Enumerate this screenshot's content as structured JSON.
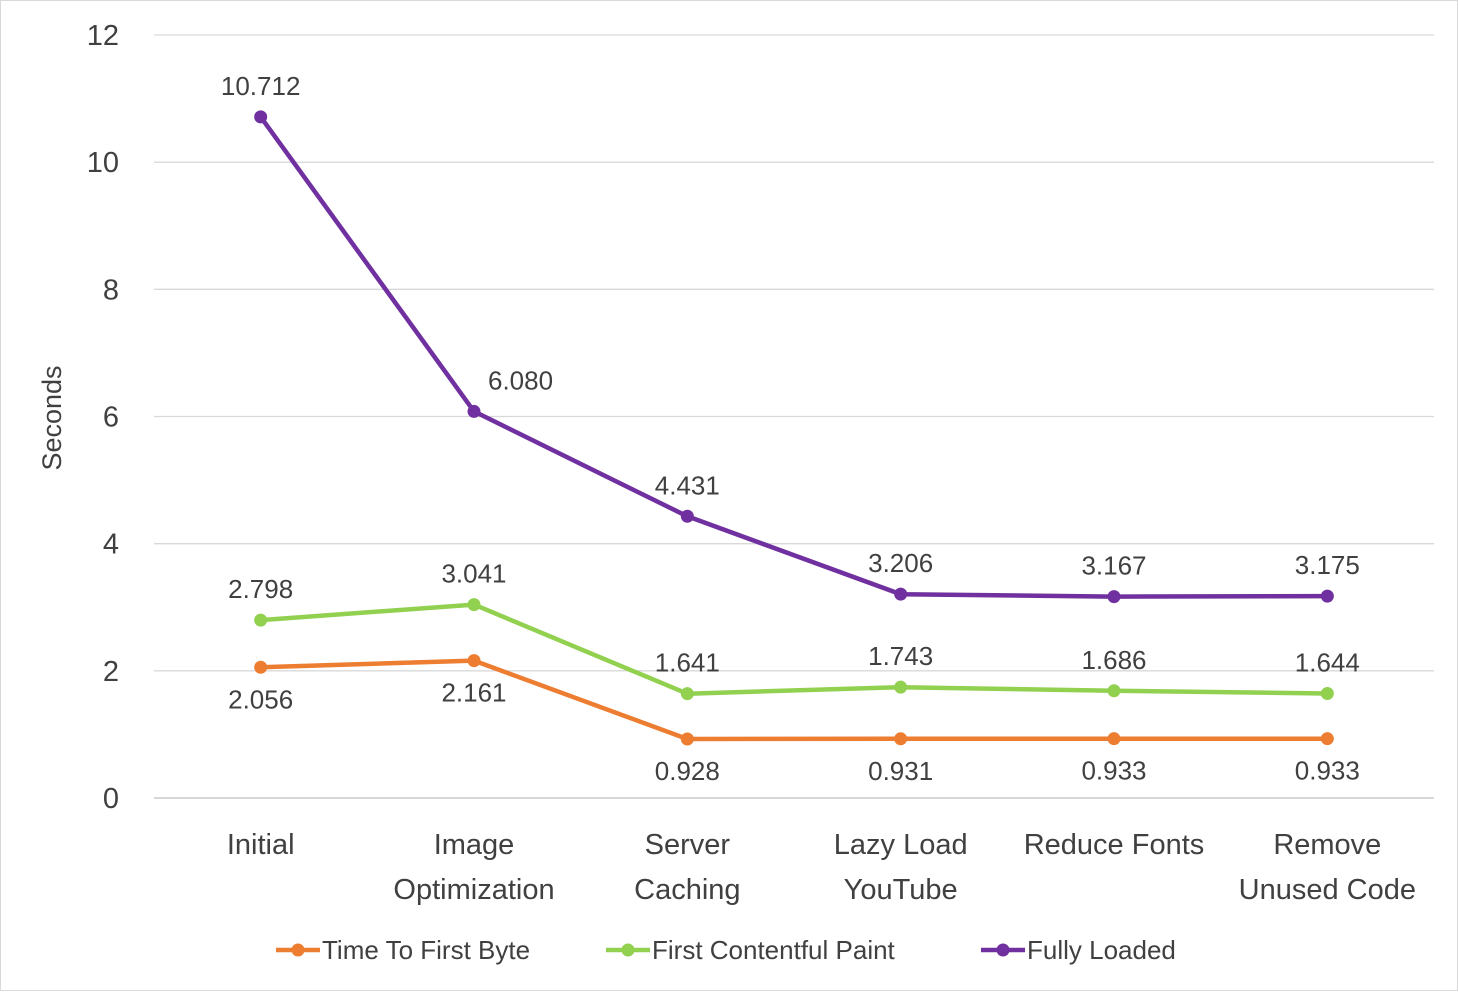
{
  "chart_data": {
    "type": "line",
    "ylabel": "Seconds",
    "ylim": [
      0,
      12
    ],
    "yticks": [
      0,
      2,
      4,
      6,
      8,
      10,
      12
    ],
    "grid": true,
    "legend_position": "bottom",
    "categories": [
      [
        "Initial"
      ],
      [
        "Image",
        "Optimization"
      ],
      [
        "Server",
        "Caching"
      ],
      [
        "Lazy Load",
        "YouTube"
      ],
      [
        "Reduce Fonts"
      ],
      [
        "Remove",
        "Unused Code"
      ]
    ],
    "series": [
      {
        "name": "Time To First Byte",
        "color": "#ED7D31",
        "values": [
          2.056,
          2.161,
          0.928,
          0.931,
          0.933,
          0.933
        ],
        "labels": [
          "2.056",
          "2.161",
          "0.928",
          "0.931",
          "0.933",
          "0.933"
        ],
        "label_position": "below"
      },
      {
        "name": "First Contentful Paint",
        "color": "#92D050",
        "values": [
          2.798,
          3.041,
          1.641,
          1.743,
          1.686,
          1.644
        ],
        "labels": [
          "2.798",
          "3.041",
          "1.641",
          "1.743",
          "1.686",
          "1.644"
        ],
        "label_position": "above"
      },
      {
        "name": "Fully Loaded",
        "color": "#7030A0",
        "values": [
          10.712,
          6.08,
          4.431,
          3.206,
          3.167,
          3.175
        ],
        "labels": [
          "10.712",
          "6.080",
          "4.431",
          "3.206",
          "3.167",
          "3.175"
        ],
        "label_position": "above"
      }
    ]
  }
}
